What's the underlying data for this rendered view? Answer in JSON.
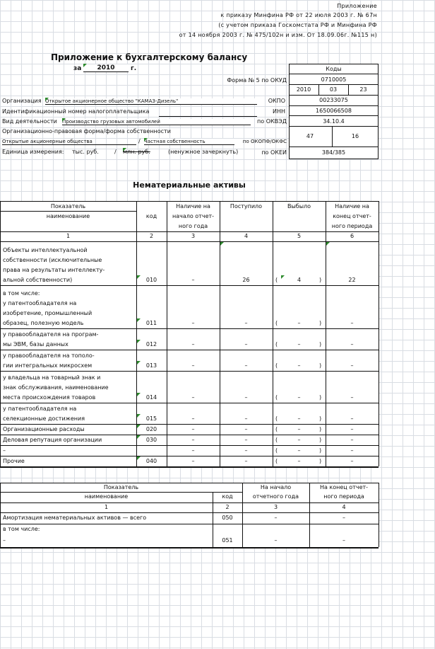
{
  "header": {
    "line1": "Приложение",
    "line2": "к приказу Минфина РФ от 22 июля 2003 г. № 67н",
    "line3": "(с учетом приказа Госкомстата РФ и Минфина РФ",
    "line4": "от 14 ноября 2003 г. № 475/102н и изм. От 18.09.06г. №115 н)"
  },
  "title": {
    "main": "Приложение к бухгалтерскому балансу",
    "za": "за",
    "year": "2010",
    "g": "г."
  },
  "codes": {
    "title": "Коды",
    "okud_label": "Форма № 5 по ОКУД",
    "okud": "0710005",
    "date_year": "2010",
    "date_month": "03",
    "date_day": "23",
    "okpo_label": "ОКПО",
    "okpo": "00233075",
    "inn_label": "ИНН",
    "inn": "1650066508",
    "okved_label": "по ОКВЭД",
    "okved": "34.10.4",
    "okopf_label": "по ОКОПФ/ОКФС",
    "okopf": "47",
    "okfs": "16",
    "okei_label": "по ОКЕИ",
    "okei": "384/385"
  },
  "org": {
    "org_label": "Организация",
    "org_value": "Открытое акционерное общество \"КАМАЗ-Дизель\"",
    "inn_label": "Идентификационный номер налогоплательщика",
    "activity_label": "Вид деятельности",
    "activity_value": "Производство грузовых автомобилей",
    "legal_form_label": "Организационно-правовая форма/форма собственности",
    "legal_form_value": "Открытые акционерные общества",
    "sep": "/",
    "ownership_value": "Частная собственность",
    "unit_label": "Единица измерения:",
    "unit_value": "тыс. руб.",
    "unit_alt": "млн. руб.",
    "unit_note": "(ненужное зачеркнуть)"
  },
  "section_title": "Нематериальные активы",
  "table1": {
    "hdr_indicator": "Показатель",
    "hdr_name": "наименование",
    "hdr_code": "код",
    "hdr_begin": [
      "Наличие на",
      "начало отчет-",
      "ного года"
    ],
    "hdr_in": "Поступило",
    "hdr_out": "Выбыло",
    "hdr_end": [
      "Наличие на",
      "конец отчет-",
      "ного периода"
    ],
    "nums": [
      "1",
      "2",
      "3",
      "4",
      "5",
      "6"
    ],
    "rows": [
      {
        "name": [
          "Объекты интеллектуальной",
          "собственности (исключительные",
          "права на результаты интеллекту-",
          "альной собственности)"
        ],
        "code": "010",
        "begin": "–",
        "in": "26",
        "out": "4",
        "end": "22",
        "lp": "(",
        "rp": ")"
      },
      {
        "name": [
          "   в том числе:",
          "у патентообладателя на",
          "изобретение, промышленный",
          "образец, полезную модель"
        ],
        "code": "011",
        "begin": "–",
        "in": "–",
        "out": "–",
        "end": "–",
        "lp": "(",
        "rp": ")"
      },
      {
        "name": [
          "у правообладателя на програм-",
          "мы ЭВМ, базы данных"
        ],
        "code": "012",
        "begin": "–",
        "in": "–",
        "out": "–",
        "end": "–",
        "lp": "(",
        "rp": ")"
      },
      {
        "name": [
          "у правообладателя на тополо-",
          "гии интегральных микросхем"
        ],
        "code": "013",
        "begin": "–",
        "in": "–",
        "out": "–",
        "end": "–",
        "lp": "(",
        "rp": ")"
      },
      {
        "name": [
          "у владельца на товарный знак и",
          "знак обслуживания, наименование",
          "места происхождения товаров"
        ],
        "code": "014",
        "begin": "–",
        "in": "–",
        "out": "–",
        "end": "–",
        "lp": "(",
        "rp": ")"
      },
      {
        "name": [
          "у патентообладателя на",
          "селекционные достижения"
        ],
        "code": "015",
        "begin": "–",
        "in": "–",
        "out": "–",
        "end": "–",
        "lp": "(",
        "rp": ")"
      },
      {
        "name": [
          "Организационные расходы"
        ],
        "code": "020",
        "begin": "–",
        "in": "–",
        "out": "–",
        "end": "–",
        "lp": "(",
        "rp": ")"
      },
      {
        "name": [
          "Деловая репутация организации"
        ],
        "code": "030",
        "begin": "–",
        "in": "–",
        "out": "–",
        "end": "–",
        "lp": "(",
        "rp": ")"
      },
      {
        "name": [
          "–"
        ],
        "code": "",
        "begin": "–",
        "in": "–",
        "out": "–",
        "end": "–",
        "lp": "(",
        "rp": ")"
      },
      {
        "name": [
          "Прочие"
        ],
        "code": "040",
        "begin": "–",
        "in": "–",
        "out": "–",
        "end": "–",
        "lp": "(",
        "rp": ")"
      }
    ]
  },
  "table2": {
    "hdr_indicator": "Показатель",
    "hdr_name": "наименование",
    "hdr_code": "код",
    "hdr_begin": [
      "На начало",
      "отчетного года"
    ],
    "hdr_end": [
      "На конец отчет-",
      "ного периода"
    ],
    "nums": [
      "1",
      "2",
      "3",
      "4"
    ],
    "rows": [
      {
        "name": "Амортизация нематериальных активов — всего",
        "code": "050",
        "begin": "–",
        "end": "–"
      },
      {
        "name": "   в том числе:",
        "code": "",
        "begin": "",
        "end": ""
      },
      {
        "name": "–",
        "code": "051",
        "begin": "–",
        "end": "–"
      }
    ]
  }
}
